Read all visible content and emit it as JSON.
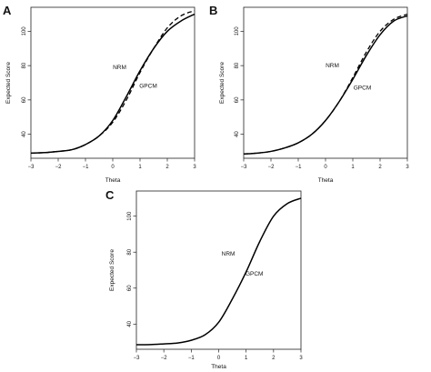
{
  "chart_data": [
    {
      "panel_label": "A",
      "type": "line",
      "xlabel": "Theta",
      "ylabel": "Expected Score",
      "xlim": [
        -3,
        3
      ],
      "ylim": [
        26,
        114
      ],
      "xticks": [
        -3,
        -2,
        -1,
        0,
        1,
        2,
        3
      ],
      "yticks": [
        40,
        60,
        80,
        100
      ],
      "grid": false,
      "legend": "none",
      "annotations": [
        {
          "text": "NRM",
          "x": 0.25,
          "y": 78
        },
        {
          "text": "GPCM",
          "x": 1.3,
          "y": 67
        }
      ],
      "series": [
        {
          "style": "solid",
          "x": [
            -3,
            -2.5,
            -2,
            -1.5,
            -1,
            -0.5,
            0,
            0.5,
            1,
            1.5,
            2,
            2.5,
            3
          ],
          "y": [
            29,
            29.3,
            30,
            31,
            34,
            39,
            48,
            62,
            77,
            90,
            100,
            106,
            110
          ]
        },
        {
          "style": "dashed",
          "x": [
            -3,
            -2.5,
            -2,
            -1.5,
            -1,
            -0.5,
            0,
            0.5,
            1,
            1.5,
            2,
            2.5,
            3
          ],
          "y": [
            29,
            29.3,
            30,
            31,
            34,
            39,
            47,
            60,
            76,
            90,
            102,
            109,
            112
          ]
        }
      ]
    },
    {
      "panel_label": "B",
      "type": "line",
      "xlabel": "Theta",
      "ylabel": "Expected Score",
      "xlim": [
        -3,
        3
      ],
      "ylim": [
        26,
        114
      ],
      "xticks": [
        -3,
        -2,
        -1,
        0,
        1,
        2,
        3
      ],
      "yticks": [
        40,
        60,
        80,
        100
      ],
      "grid": false,
      "legend": "none",
      "annotations": [
        {
          "text": "NRM",
          "x": 0.25,
          "y": 79
        },
        {
          "text": "GPCM",
          "x": 1.35,
          "y": 66
        }
      ],
      "series": [
        {
          "style": "solid",
          "x": [
            -3,
            -2.5,
            -2,
            -1.5,
            -1,
            -0.5,
            0,
            0.5,
            1,
            1.5,
            2,
            2.5,
            3
          ],
          "y": [
            28.5,
            29,
            30,
            32,
            35,
            40,
            48,
            59,
            72,
            86,
            98,
            106,
            109
          ]
        },
        {
          "style": "dashed",
          "x": [
            -3,
            -2.5,
            -2,
            -1.5,
            -1,
            -0.5,
            0,
            0.5,
            1,
            1.5,
            2,
            2.5,
            3
          ],
          "y": [
            28.5,
            29,
            30,
            32,
            35,
            40,
            48,
            59,
            73,
            88,
            100,
            107,
            110
          ]
        }
      ]
    },
    {
      "panel_label": "C",
      "type": "line",
      "xlabel": "Theta",
      "ylabel": "Expected Score",
      "xlim": [
        -3,
        3
      ],
      "ylim": [
        26,
        114
      ],
      "xticks": [
        -3,
        -2,
        -1,
        0,
        1,
        2,
        3
      ],
      "yticks": [
        40,
        60,
        80,
        100
      ],
      "grid": false,
      "legend": "none",
      "annotations": [
        {
          "text": "NRM",
          "x": 0.35,
          "y": 78
        },
        {
          "text": "GPCM",
          "x": 1.3,
          "y": 67
        }
      ],
      "series": [
        {
          "style": "solid",
          "x": [
            -3,
            -2.5,
            -2,
            -1.5,
            -1,
            -0.5,
            0,
            0.5,
            1,
            1.5,
            2,
            2.5,
            3
          ],
          "y": [
            28.5,
            28.6,
            29,
            29.5,
            31,
            34,
            41,
            54,
            69,
            86,
            100,
            107,
            110
          ]
        }
      ]
    }
  ]
}
